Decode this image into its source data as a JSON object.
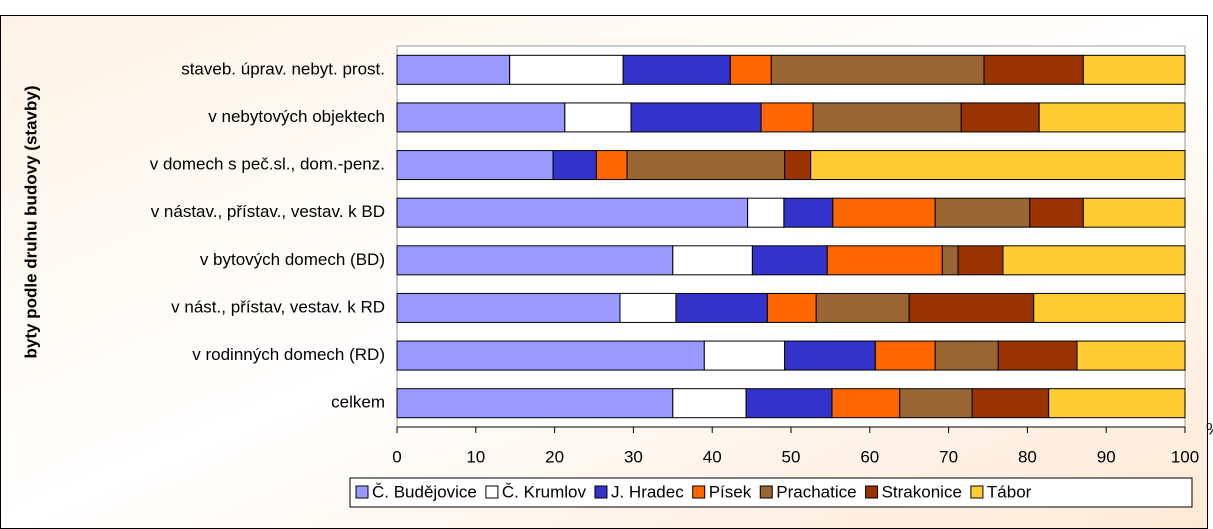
{
  "chart_data": {
    "type": "bar",
    "orientation": "horizontal",
    "stacked": true,
    "ylabel": "byty podle druhu budovy (stavby)",
    "xlabel": "%",
    "categories": [
      "staveb. úprav. nebyt. prost.",
      "v nebytových objektech",
      "v domech s peč.sl., dom.-penz.",
      "v nástav., přístav., vestav. k BD",
      "v bytových domech (BD)",
      "v nást., přístav, vestav. k RD",
      "v rodinných domech (RD)",
      "celkem"
    ],
    "series": [
      {
        "name": "Č. Budějovice",
        "color": "#9999ff",
        "values": [
          14.3,
          21.3,
          19.8,
          44.5,
          35.0,
          28.3,
          39.0,
          35.0
        ]
      },
      {
        "name": "Č. Krumlov",
        "color": "#ffffff",
        "values": [
          14.4,
          8.4,
          0,
          4.6,
          10.1,
          7.1,
          10.2,
          9.3
        ]
      },
      {
        "name": "J. Hradec",
        "color": "#3333cc",
        "values": [
          13.6,
          16.5,
          5.5,
          6.2,
          9.5,
          11.6,
          11.5,
          10.9
        ]
      },
      {
        "name": "Písek",
        "color": "#ff6600",
        "values": [
          5.2,
          6.6,
          3.9,
          13.0,
          14.6,
          6.2,
          7.6,
          8.6
        ]
      },
      {
        "name": "Prachatice",
        "color": "#996633",
        "values": [
          27.0,
          18.8,
          20.0,
          12.0,
          2.0,
          11.8,
          8.0,
          9.2
        ]
      },
      {
        "name": "Strakonice",
        "color": "#993300",
        "values": [
          12.6,
          9.9,
          3.3,
          6.8,
          5.7,
          15.8,
          10.0,
          9.7
        ]
      },
      {
        "name": "Tábor",
        "color": "#ffcc33",
        "values": [
          12.9,
          18.5,
          47.5,
          12.9,
          23.1,
          19.2,
          13.7,
          17.3
        ]
      }
    ],
    "xlim": [
      0,
      100
    ],
    "xticks": [
      0,
      10,
      20,
      30,
      40,
      50,
      60,
      70,
      80,
      90,
      100
    ],
    "legend": "bottom"
  }
}
